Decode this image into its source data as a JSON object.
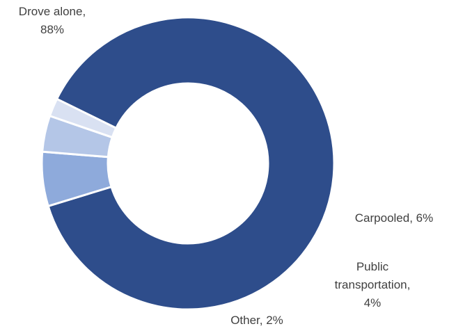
{
  "chart_data": {
    "type": "pie",
    "donut": true,
    "title": "",
    "legend": "none",
    "slices": [
      {
        "label": "Drove alone",
        "value": 88,
        "display": "88%",
        "color": "#2e4d8b"
      },
      {
        "label": "Carpooled",
        "value": 6,
        "display": "6%",
        "color": "#8eaadb"
      },
      {
        "label": "Public transportation",
        "value": 4,
        "display": "4%",
        "color": "#b4c6e7"
      },
      {
        "label": "Other",
        "value": 2,
        "display": "2%",
        "color": "#d9e1f2"
      }
    ]
  },
  "labels": {
    "drove_alone_line1": "Drove alone,",
    "drove_alone_line2": "88%",
    "carpooled_line1": "Carpooled, 6%",
    "public_line1": "Public",
    "public_line2": "transportation,",
    "public_line3": "4%",
    "other_line1": "Other, 2%"
  }
}
